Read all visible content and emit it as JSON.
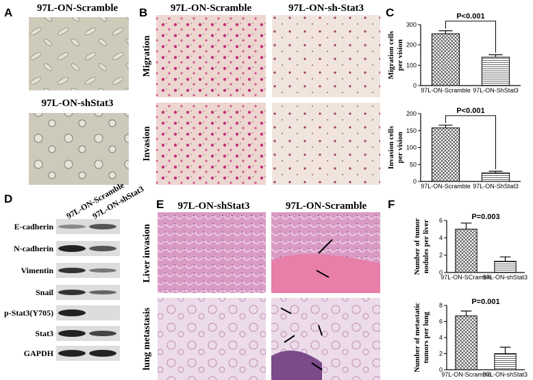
{
  "figure": {
    "panels": [
      "A",
      "B",
      "C",
      "D",
      "E",
      "F"
    ],
    "a_captions": [
      "97L-ON-Scramble",
      "97L-ON-shStat3"
    ],
    "b_columns": [
      "97L-ON-Scramble",
      "97L-ON-sh-Stat3"
    ],
    "b_rows": [
      "Migration",
      "Invasion"
    ],
    "d_columns": [
      "97L-ON-Scramble",
      "97L-ON-shStat3"
    ],
    "d_rows": [
      "E-cadherin",
      "N-cadherin",
      "Vimentin",
      "Snail",
      "p-Stat3(Y705)",
      "Stat3",
      "GAPDH"
    ],
    "e_columns": [
      "97L-ON-shStat3",
      "97L-ON-Scramble"
    ],
    "e_rows": [
      "Liver invasion",
      "lung metastasis"
    ]
  },
  "chart_data": [
    {
      "type": "bar",
      "ylabel": [
        "Migration cells",
        "per vision"
      ],
      "annotation": "P<0.001",
      "bracket": true,
      "categories": [
        "97L-ON-Scramble",
        "97L-ON-ShStat3"
      ],
      "values": [
        255,
        140
      ],
      "errors": [
        15,
        12
      ],
      "ylim": [
        0,
        300
      ],
      "yticks": [
        0,
        100,
        200,
        300
      ]
    },
    {
      "type": "bar",
      "ylabel": [
        "Invasion cells",
        "per vision"
      ],
      "annotation": "P<0.001",
      "bracket": true,
      "categories": [
        "97L-ON-Scramble",
        "97L-ON-ShStat3"
      ],
      "values": [
        158,
        25
      ],
      "errors": [
        8,
        5
      ],
      "ylim": [
        0,
        200
      ],
      "yticks": [
        0,
        50,
        100,
        150,
        200
      ]
    },
    {
      "type": "bar",
      "ylabel": [
        "Number of tumor",
        "nodules per liver"
      ],
      "annotation": "P=0.003",
      "bracket": false,
      "categories": [
        "97L-ON-SCramble",
        "97L-ON-shStat3"
      ],
      "values": [
        5,
        1.3
      ],
      "errors": [
        0.7,
        0.5
      ],
      "ylim": [
        0,
        6
      ],
      "yticks": [
        0,
        2,
        4,
        6
      ]
    },
    {
      "type": "bar",
      "ylabel": [
        "Number of metastatic",
        "tumors per lung"
      ],
      "annotation": "P=0.001",
      "bracket": false,
      "categories": [
        "97L-ON-Scramble",
        "97L-ON-shStat3"
      ],
      "values": [
        6.7,
        2
      ],
      "errors": [
        0.6,
        0.8
      ],
      "ylim": [
        0,
        8
      ],
      "yticks": [
        0,
        2,
        4,
        6,
        8
      ]
    }
  ]
}
